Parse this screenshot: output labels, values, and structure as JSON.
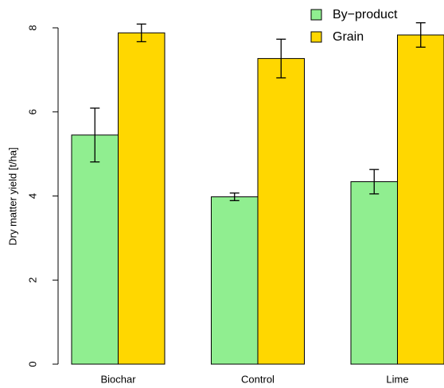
{
  "chart_data": {
    "type": "bar",
    "categories": [
      "Biochar",
      "Control",
      "Lime"
    ],
    "y_label": "Dry matter yield [t/ha]",
    "series": [
      {
        "name": "By−product",
        "color": "#90ee90",
        "values": [
          5.45,
          3.98,
          4.34
        ],
        "errors": [
          0.64,
          0.09,
          0.29
        ]
      },
      {
        "name": "Grain",
        "color": "#ffd700",
        "values": [
          7.88,
          7.27,
          7.83
        ],
        "errors": [
          0.21,
          0.46,
          0.29
        ]
      }
    ],
    "ylim": [
      0,
      8
    ],
    "yticks": [
      0,
      2,
      4,
      6,
      8
    ],
    "legend": "topright"
  }
}
